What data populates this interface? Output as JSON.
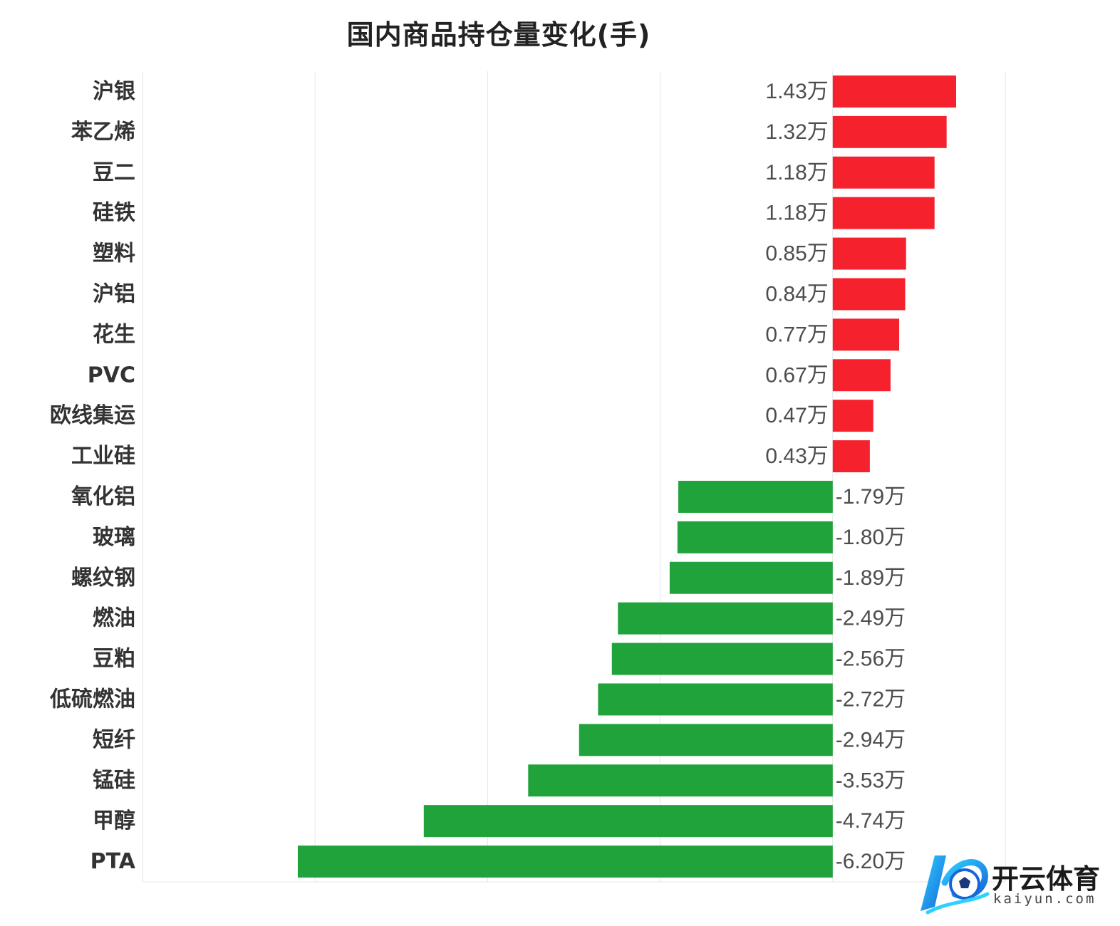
{
  "chart_data": {
    "type": "bar",
    "orientation": "horizontal",
    "title": "国内商品持仓量变化(手)",
    "unit": "万",
    "xlabel": "",
    "ylabel": "",
    "xlim": [
      -8,
      2
    ],
    "grid": "vertical gridlines",
    "categories": [
      "沪银",
      "苯乙烯",
      "豆二",
      "硅铁",
      "塑料",
      "沪铝",
      "花生",
      "PVC",
      "欧线集运",
      "工业硅",
      "氧化铝",
      "玻璃",
      "螺纹钢",
      "燃油",
      "豆粕",
      "低硫燃油",
      "短纤",
      "锰硅",
      "甲醇",
      "PTA"
    ],
    "values": [
      1.43,
      1.32,
      1.18,
      1.18,
      0.85,
      0.84,
      0.77,
      0.67,
      0.47,
      0.43,
      -1.79,
      -1.8,
      -1.89,
      -2.49,
      -2.56,
      -2.72,
      -2.94,
      -3.53,
      -4.74,
      -6.2
    ],
    "value_labels": [
      "1.43万",
      "1.32万",
      "1.18万",
      "1.18万",
      "0.85万",
      "0.84万",
      "0.77万",
      "0.67万",
      "0.47万",
      "0.43万",
      "-1.79万",
      "-1.80万",
      "-1.89万",
      "-2.49万",
      "-2.56万",
      "-2.72万",
      "-2.94万",
      "-3.53万",
      "-4.74万",
      "-6.20万"
    ],
    "colors": {
      "positive": "#f5222d",
      "negative": "#21a33b",
      "grid": "#e6e6e6"
    }
  },
  "watermark": {
    "brand": "开云体育",
    "domain": "kaiyun.com",
    "logo_icon": "kaiyun-football-logo-icon"
  }
}
